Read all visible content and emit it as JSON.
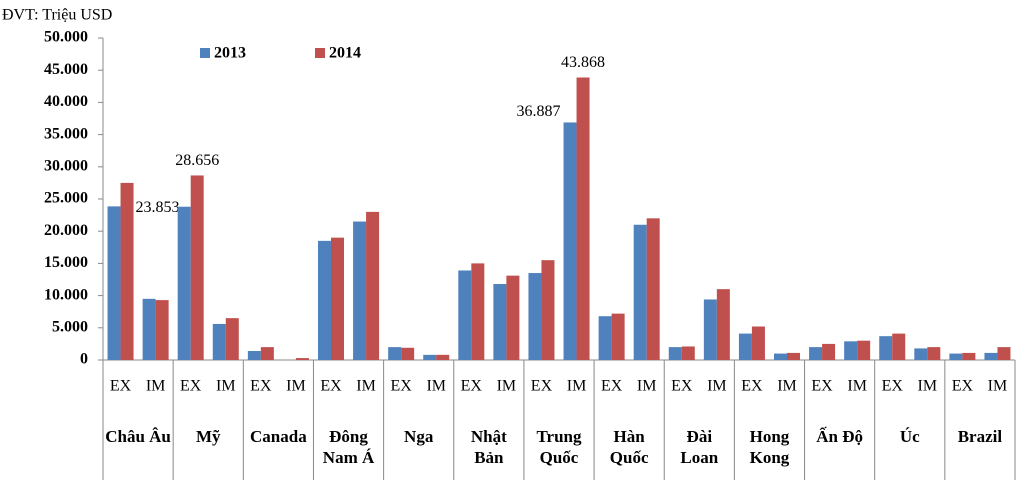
{
  "chart_data": {
    "type": "bar",
    "title": "ĐVT: Triệu USD",
    "categories": [
      "EX",
      "IM",
      "EX",
      "IM",
      "EX",
      "IM",
      "EX",
      "IM",
      "EX",
      "IM",
      "EX",
      "IM",
      "EX",
      "IM",
      "EX",
      "IM",
      "EX",
      "IM",
      "EX",
      "IM",
      "EX",
      "IM",
      "EX",
      "IM",
      "EX",
      "IM"
    ],
    "groups": [
      "Châu Âu",
      "Mỹ",
      "Canada",
      "Đông Nam Á",
      "Nga",
      "Nhật Bản",
      "Trung Quốc",
      "Hàn Quốc",
      "Đài Loan",
      "Hong Kong",
      "Ấn Độ",
      "Úc",
      "Brazil"
    ],
    "series": [
      {
        "name": "2013",
        "color": "#4f81bd",
        "values": [
          23853,
          9500,
          23800,
          5600,
          1400,
          0,
          18500,
          21500,
          2000,
          800,
          13900,
          11800,
          13500,
          36887,
          6800,
          21000,
          2000,
          9400,
          4100,
          1000,
          2000,
          2900,
          3700,
          1800,
          1000,
          1100
        ],
        "value_labels": [
          "23.853",
          null,
          null,
          null,
          null,
          null,
          null,
          null,
          null,
          null,
          null,
          null,
          null,
          "36.887",
          null,
          null,
          null,
          null,
          null,
          null,
          null,
          null,
          null,
          null,
          null,
          null
        ]
      },
      {
        "name": "2014",
        "color": "#c0504d",
        "values": [
          27500,
          9300,
          28656,
          6500,
          2000,
          300,
          19000,
          23000,
          1900,
          800,
          15000,
          13100,
          15500,
          43868,
          7200,
          22000,
          2100,
          11000,
          5200,
          1100,
          2500,
          3000,
          4100,
          2000,
          1100,
          2000
        ],
        "value_labels": [
          null,
          null,
          "28.656",
          null,
          null,
          null,
          null,
          null,
          null,
          null,
          null,
          null,
          null,
          "43.868",
          null,
          null,
          null,
          null,
          null,
          null,
          null,
          null,
          null,
          null,
          null,
          null
        ]
      }
    ],
    "ylim": [
      0,
      50000
    ],
    "yticks": [
      0,
      {
        "value": 5000,
        "label": "5.000"
      },
      {
        "value": 10000,
        "label": "10.000"
      },
      {
        "value": 15000,
        "label": "15.000"
      },
      {
        "value": 20000,
        "label": "20.000"
      },
      {
        "value": 25000,
        "label": "25.000"
      },
      {
        "value": 30000,
        "label": "30.000"
      },
      {
        "value": 35000,
        "label": "35.000"
      },
      {
        "value": 40000,
        "label": "40.000"
      },
      {
        "value": 45000,
        "label": "45.000"
      },
      {
        "value": 50000,
        "label": "50.000"
      }
    ],
    "grid": false
  }
}
